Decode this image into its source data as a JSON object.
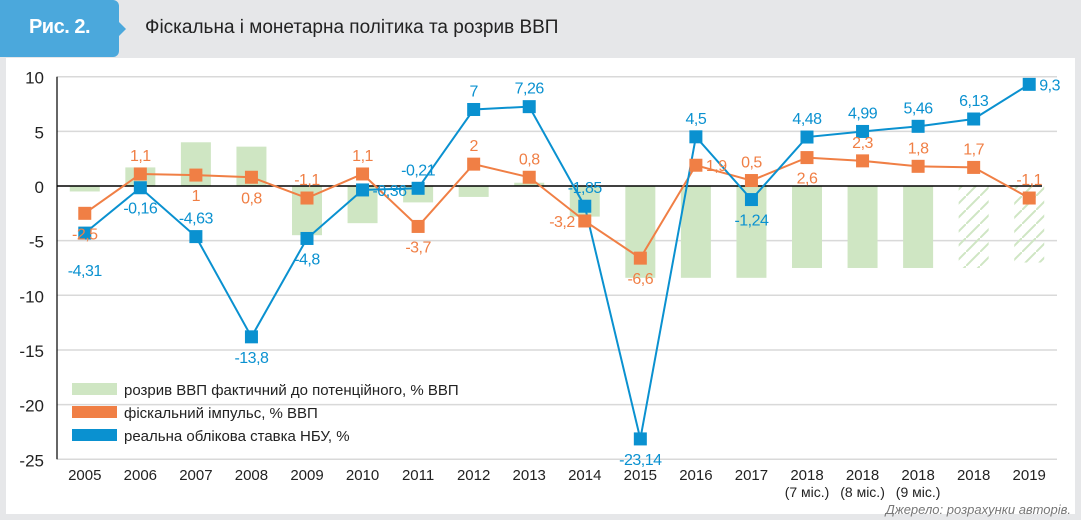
{
  "header": {
    "badge": "Рис. 2.",
    "title": "Фіскальна і монетарна політика та розрив ВВП"
  },
  "source": "Джерело: розрахунки авторів.",
  "colors": {
    "gap": "#cfe6c3",
    "fiscal": "#f07f45",
    "rate": "#0a91d0",
    "badge": "#4ba8dc",
    "grid": "#d9d9d9"
  },
  "chart_data": {
    "type": "bar+line",
    "title": "Фіскальна і монетарна політика та розрив ВВП",
    "xlabel": "",
    "ylabel": "",
    "ylim": [
      -25,
      10
    ],
    "yticks": [
      10,
      5,
      0,
      -5,
      -10,
      -15,
      -20,
      -25
    ],
    "grid": true,
    "legend_position": "bottom-left",
    "categories": [
      [
        "2005"
      ],
      [
        "2006"
      ],
      [
        "2007"
      ],
      [
        "2008"
      ],
      [
        "2009"
      ],
      [
        "2010"
      ],
      [
        "2011"
      ],
      [
        "2012"
      ],
      [
        "2013"
      ],
      [
        "2014"
      ],
      [
        "2015"
      ],
      [
        "2016"
      ],
      [
        "2017"
      ],
      [
        "2018",
        "(7 міс.)"
      ],
      [
        "2018",
        "(8 міс.)"
      ],
      [
        "2018",
        "(9 міс.)"
      ],
      [
        "2018"
      ],
      [
        "2019"
      ]
    ],
    "series": [
      {
        "name": "розрив ВВП фактичний до потенційного, % ВВП",
        "kind": "bar",
        "values": [
          -0.5,
          1.7,
          4.0,
          3.6,
          -4.5,
          -3.4,
          -1.5,
          -1.0,
          0.3,
          -2.8,
          -8.4,
          -8.4,
          -8.4,
          -7.5,
          -7.5,
          -7.5,
          -7.5,
          -7.0
        ],
        "hatched": [
          false,
          false,
          false,
          false,
          false,
          false,
          false,
          false,
          false,
          false,
          false,
          false,
          false,
          false,
          false,
          false,
          true,
          true
        ]
      },
      {
        "name": "фіскальний імпульс, % ВВП",
        "kind": "line",
        "values": [
          -2.5,
          1.1,
          1,
          0.8,
          -1.1,
          1.1,
          -3.7,
          2,
          0.8,
          -3.2,
          -6.6,
          1.9,
          0.5,
          2.6,
          2.3,
          1.8,
          1.7,
          -1.1
        ],
        "labels": [
          "-2,5",
          "1,1",
          "1",
          "0,8",
          "-1,1",
          "1,1",
          "-3,7",
          "2",
          "0,8",
          "-3,2",
          "-6,6",
          "1,9",
          "0,5",
          "2,6",
          "2,3",
          "1,8",
          "1,7",
          "-1,1"
        ],
        "label_pos": [
          "below",
          "above",
          "below",
          "below",
          "above",
          "above",
          "below",
          "above",
          "above",
          "left",
          "below",
          "right",
          "above",
          "below",
          "above",
          "above",
          "above",
          "above"
        ]
      },
      {
        "name": "реальна облікова ставка НБУ, %",
        "kind": "line",
        "values": [
          -4.31,
          -0.16,
          -4.63,
          -13.8,
          -4.8,
          -0.36,
          -0.21,
          7,
          7.26,
          -1.85,
          -23.14,
          4.5,
          -1.24,
          4.48,
          4.99,
          5.46,
          6.13,
          9.3
        ],
        "labels": [
          "-4,31",
          "-0,16",
          "-4,63",
          "-13,8",
          "-4,8",
          "-0,36",
          "-0,21",
          "7",
          "7,26",
          "-1,85",
          "-23,14",
          "4,5",
          "-1,24",
          "4,48",
          "4,99",
          "5,46",
          "6,13",
          "9,3"
        ],
        "label_pos": [
          "below2",
          "below",
          "above",
          "below",
          "below",
          "right",
          "above",
          "above",
          "above",
          "above",
          "below",
          "above",
          "below",
          "above",
          "above",
          "above",
          "above",
          "right"
        ]
      }
    ]
  }
}
